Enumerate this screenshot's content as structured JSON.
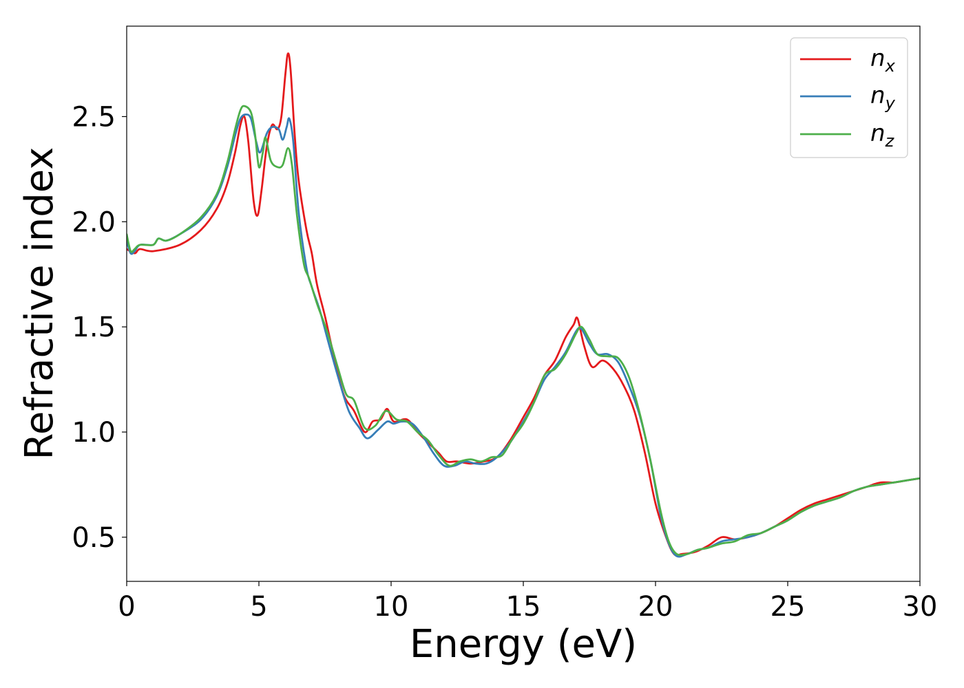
{
  "chart_data": {
    "type": "line",
    "title": "",
    "xlabel": "Energy (eV)",
    "ylabel": "Refractive index",
    "xlim": [
      0,
      30
    ],
    "ylim": [
      0.29,
      2.93
    ],
    "xticks": [
      0,
      5,
      10,
      15,
      20,
      25,
      30
    ],
    "xtick_labels": [
      "0",
      "5",
      "10",
      "15",
      "20",
      "25",
      "30"
    ],
    "yticks": [
      0.5,
      1.0,
      1.5,
      2.0,
      2.5
    ],
    "ytick_labels": [
      "0.5",
      "1.0",
      "1.5",
      "2.0",
      "2.5"
    ],
    "grid": false,
    "legend_position": "top-right",
    "series": [
      {
        "name": "n_x",
        "legend_main": "n",
        "legend_sub": "x",
        "color": "#e41a1c",
        "points": [
          [
            0,
            1.87
          ],
          [
            0.3,
            1.85
          ],
          [
            0.5,
            1.87
          ],
          [
            1,
            1.86
          ],
          [
            2,
            1.89
          ],
          [
            2.8,
            1.96
          ],
          [
            3.4,
            2.06
          ],
          [
            3.8,
            2.18
          ],
          [
            4.1,
            2.33
          ],
          [
            4.3,
            2.46
          ],
          [
            4.45,
            2.5
          ],
          [
            4.6,
            2.38
          ],
          [
            4.8,
            2.1
          ],
          [
            4.95,
            2.03
          ],
          [
            5.1,
            2.15
          ],
          [
            5.3,
            2.36
          ],
          [
            5.5,
            2.46
          ],
          [
            5.7,
            2.44
          ],
          [
            5.85,
            2.5
          ],
          [
            6.0,
            2.7
          ],
          [
            6.1,
            2.8
          ],
          [
            6.2,
            2.72
          ],
          [
            6.35,
            2.42
          ],
          [
            6.5,
            2.2
          ],
          [
            6.8,
            1.96
          ],
          [
            7.0,
            1.85
          ],
          [
            7.2,
            1.7
          ],
          [
            7.5,
            1.55
          ],
          [
            7.8,
            1.38
          ],
          [
            8.2,
            1.18
          ],
          [
            8.6,
            1.1
          ],
          [
            9.0,
            1.0
          ],
          [
            9.3,
            1.05
          ],
          [
            9.6,
            1.06
          ],
          [
            9.85,
            1.11
          ],
          [
            10.1,
            1.05
          ],
          [
            10.6,
            1.06
          ],
          [
            11.0,
            1.0
          ],
          [
            11.4,
            0.95
          ],
          [
            11.8,
            0.9
          ],
          [
            12.1,
            0.86
          ],
          [
            12.5,
            0.86
          ],
          [
            13.0,
            0.85
          ],
          [
            13.5,
            0.86
          ],
          [
            14.0,
            0.88
          ],
          [
            14.5,
            0.96
          ],
          [
            15.0,
            1.07
          ],
          [
            15.4,
            1.16
          ],
          [
            15.8,
            1.27
          ],
          [
            16.2,
            1.34
          ],
          [
            16.6,
            1.45
          ],
          [
            16.9,
            1.51
          ],
          [
            17.05,
            1.54
          ],
          [
            17.3,
            1.41
          ],
          [
            17.6,
            1.31
          ],
          [
            18.0,
            1.34
          ],
          [
            18.4,
            1.3
          ],
          [
            18.8,
            1.22
          ],
          [
            19.2,
            1.1
          ],
          [
            19.6,
            0.9
          ],
          [
            20.0,
            0.66
          ],
          [
            20.4,
            0.5
          ],
          [
            20.7,
            0.42
          ],
          [
            21.0,
            0.42
          ],
          [
            21.5,
            0.43
          ],
          [
            22.0,
            0.46
          ],
          [
            22.5,
            0.5
          ],
          [
            23.0,
            0.49
          ],
          [
            23.5,
            0.5
          ],
          [
            24.0,
            0.52
          ],
          [
            24.5,
            0.55
          ],
          [
            25.0,
            0.59
          ],
          [
            25.5,
            0.63
          ],
          [
            26.0,
            0.66
          ],
          [
            26.5,
            0.68
          ],
          [
            27.0,
            0.7
          ],
          [
            27.5,
            0.72
          ],
          [
            28.0,
            0.74
          ],
          [
            28.5,
            0.76
          ],
          [
            29.0,
            0.76
          ],
          [
            29.5,
            0.77
          ],
          [
            30.0,
            0.78
          ]
        ]
      },
      {
        "name": "n_y",
        "legend_main": "n",
        "legend_sub": "y",
        "color": "#377eb8",
        "points": [
          [
            0,
            1.91
          ],
          [
            0.15,
            1.85
          ],
          [
            0.3,
            1.86
          ],
          [
            0.5,
            1.89
          ],
          [
            1,
            1.89
          ],
          [
            1.2,
            1.92
          ],
          [
            1.5,
            1.91
          ],
          [
            2,
            1.94
          ],
          [
            2.8,
            2.01
          ],
          [
            3.4,
            2.12
          ],
          [
            3.8,
            2.26
          ],
          [
            4.1,
            2.41
          ],
          [
            4.3,
            2.49
          ],
          [
            4.5,
            2.51
          ],
          [
            4.7,
            2.49
          ],
          [
            4.9,
            2.38
          ],
          [
            5.05,
            2.33
          ],
          [
            5.3,
            2.42
          ],
          [
            5.5,
            2.45
          ],
          [
            5.75,
            2.44
          ],
          [
            5.9,
            2.39
          ],
          [
            6.05,
            2.45
          ],
          [
            6.15,
            2.49
          ],
          [
            6.3,
            2.38
          ],
          [
            6.5,
            2.05
          ],
          [
            6.8,
            1.78
          ],
          [
            7.0,
            1.69
          ],
          [
            7.3,
            1.58
          ],
          [
            7.6,
            1.44
          ],
          [
            8.0,
            1.26
          ],
          [
            8.4,
            1.1
          ],
          [
            8.8,
            1.02
          ],
          [
            9.1,
            0.97
          ],
          [
            9.5,
            1.01
          ],
          [
            9.85,
            1.05
          ],
          [
            10.1,
            1.04
          ],
          [
            10.4,
            1.05
          ],
          [
            10.8,
            1.04
          ],
          [
            11.2,
            0.98
          ],
          [
            11.6,
            0.9
          ],
          [
            12.0,
            0.84
          ],
          [
            12.4,
            0.84
          ],
          [
            12.8,
            0.86
          ],
          [
            13.2,
            0.85
          ],
          [
            13.6,
            0.85
          ],
          [
            14.0,
            0.88
          ],
          [
            14.5,
            0.95
          ],
          [
            15.0,
            1.05
          ],
          [
            15.4,
            1.14
          ],
          [
            15.8,
            1.25
          ],
          [
            16.2,
            1.31
          ],
          [
            16.6,
            1.38
          ],
          [
            17.0,
            1.48
          ],
          [
            17.2,
            1.49
          ],
          [
            17.5,
            1.42
          ],
          [
            17.8,
            1.37
          ],
          [
            18.2,
            1.37
          ],
          [
            18.6,
            1.33
          ],
          [
            19.0,
            1.22
          ],
          [
            19.4,
            1.08
          ],
          [
            19.8,
            0.87
          ],
          [
            20.2,
            0.6
          ],
          [
            20.5,
            0.47
          ],
          [
            20.8,
            0.41
          ],
          [
            21.2,
            0.42
          ],
          [
            21.6,
            0.44
          ],
          [
            22.0,
            0.45
          ],
          [
            22.5,
            0.48
          ],
          [
            23.0,
            0.49
          ],
          [
            23.5,
            0.5
          ],
          [
            24.0,
            0.52
          ],
          [
            24.5,
            0.55
          ],
          [
            25.0,
            0.58
          ],
          [
            25.5,
            0.62
          ],
          [
            26.0,
            0.65
          ],
          [
            26.5,
            0.67
          ],
          [
            27.0,
            0.69
          ],
          [
            27.5,
            0.72
          ],
          [
            28.0,
            0.74
          ],
          [
            28.5,
            0.75
          ],
          [
            29.0,
            0.76
          ],
          [
            29.5,
            0.77
          ],
          [
            30.0,
            0.78
          ]
        ]
      },
      {
        "name": "n_z",
        "legend_main": "n",
        "legend_sub": "z",
        "color": "#4daf4a",
        "points": [
          [
            0,
            1.94
          ],
          [
            0.15,
            1.86
          ],
          [
            0.3,
            1.87
          ],
          [
            0.5,
            1.89
          ],
          [
            1,
            1.89
          ],
          [
            1.2,
            1.92
          ],
          [
            1.5,
            1.91
          ],
          [
            2,
            1.94
          ],
          [
            2.8,
            2.02
          ],
          [
            3.4,
            2.13
          ],
          [
            3.8,
            2.28
          ],
          [
            4.1,
            2.44
          ],
          [
            4.3,
            2.53
          ],
          [
            4.45,
            2.55
          ],
          [
            4.7,
            2.52
          ],
          [
            4.85,
            2.42
          ],
          [
            5.0,
            2.26
          ],
          [
            5.15,
            2.33
          ],
          [
            5.25,
            2.4
          ],
          [
            5.45,
            2.29
          ],
          [
            5.7,
            2.26
          ],
          [
            5.9,
            2.27
          ],
          [
            6.1,
            2.35
          ],
          [
            6.25,
            2.27
          ],
          [
            6.45,
            2.02
          ],
          [
            6.7,
            1.8
          ],
          [
            6.9,
            1.73
          ],
          [
            7.2,
            1.61
          ],
          [
            7.6,
            1.47
          ],
          [
            8.0,
            1.3
          ],
          [
            8.3,
            1.18
          ],
          [
            8.6,
            1.15
          ],
          [
            9.0,
            1.02
          ],
          [
            9.4,
            1.03
          ],
          [
            9.8,
            1.1
          ],
          [
            10.2,
            1.06
          ],
          [
            10.6,
            1.05
          ],
          [
            11.0,
            1.0
          ],
          [
            11.4,
            0.96
          ],
          [
            11.8,
            0.89
          ],
          [
            12.2,
            0.84
          ],
          [
            12.6,
            0.86
          ],
          [
            13.0,
            0.87
          ],
          [
            13.4,
            0.86
          ],
          [
            13.8,
            0.88
          ],
          [
            14.2,
            0.89
          ],
          [
            14.6,
            0.97
          ],
          [
            15.0,
            1.04
          ],
          [
            15.4,
            1.14
          ],
          [
            15.8,
            1.27
          ],
          [
            16.2,
            1.3
          ],
          [
            16.6,
            1.37
          ],
          [
            17.0,
            1.47
          ],
          [
            17.2,
            1.5
          ],
          [
            17.5,
            1.44
          ],
          [
            17.8,
            1.37
          ],
          [
            18.2,
            1.36
          ],
          [
            18.6,
            1.35
          ],
          [
            19.0,
            1.26
          ],
          [
            19.4,
            1.09
          ],
          [
            19.8,
            0.87
          ],
          [
            20.2,
            0.62
          ],
          [
            20.5,
            0.48
          ],
          [
            20.8,
            0.42
          ],
          [
            21.2,
            0.42
          ],
          [
            21.6,
            0.44
          ],
          [
            22.0,
            0.45
          ],
          [
            22.5,
            0.47
          ],
          [
            23.0,
            0.48
          ],
          [
            23.5,
            0.51
          ],
          [
            24.0,
            0.52
          ],
          [
            24.5,
            0.55
          ],
          [
            25.0,
            0.58
          ],
          [
            25.5,
            0.62
          ],
          [
            26.0,
            0.65
          ],
          [
            26.5,
            0.67
          ],
          [
            27.0,
            0.69
          ],
          [
            27.5,
            0.72
          ],
          [
            28.0,
            0.74
          ],
          [
            28.5,
            0.75
          ],
          [
            29.0,
            0.76
          ],
          [
            29.5,
            0.77
          ],
          [
            30.0,
            0.78
          ]
        ]
      }
    ]
  }
}
